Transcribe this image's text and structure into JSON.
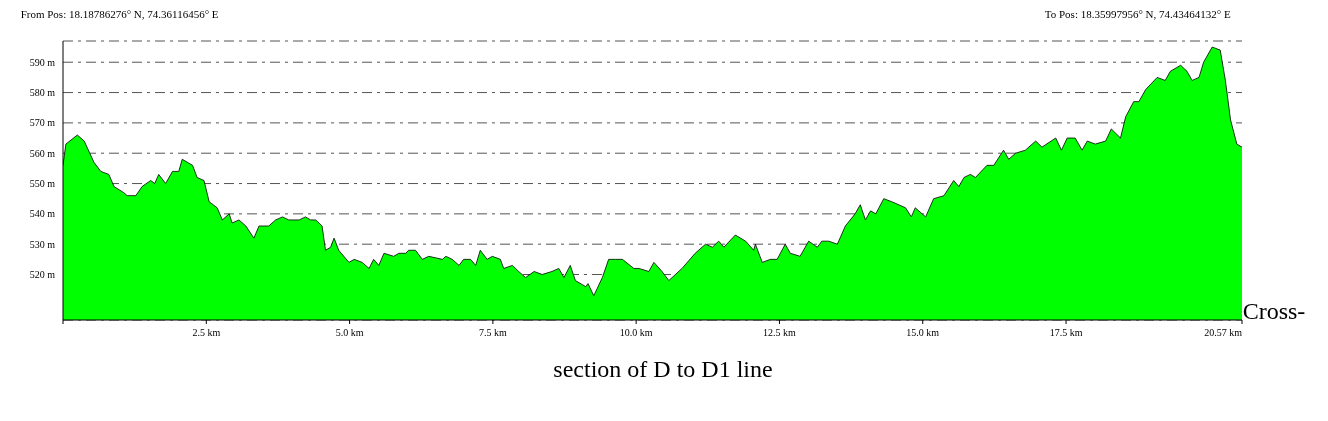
{
  "chart_data": {
    "type": "area",
    "annotations": [
      "From Pos: 18.18786276° N, 74.36116456° E",
      "To Pos: 18.35997956° N, 74.43464132° E",
      "Cross-section of D to D1 line"
    ],
    "x": [
      0,
      0.05,
      0.25,
      0.37,
      0.54,
      0.66,
      0.8,
      0.89,
      1.06,
      1.12,
      1.27,
      1.38,
      1.53,
      1.6,
      1.67,
      1.79,
      1.91,
      2.02,
      2.08,
      2.26,
      2.34,
      2.46,
      2.55,
      2.69,
      2.78,
      2.9,
      2.95,
      3.07,
      3.19,
      3.33,
      3.42,
      3.59,
      3.71,
      3.83,
      3.94,
      4.12,
      4.23,
      4.32,
      4.41,
      4.52,
      4.58,
      4.67,
      4.73,
      4.81,
      4.99,
      5.08,
      5.22,
      5.34,
      5.42,
      5.51,
      5.6,
      5.77,
      5.86,
      5.98,
      6.03,
      6.15,
      6.27,
      6.38,
      6.62,
      6.68,
      6.79,
      6.91,
      6.99,
      7.11,
      7.2,
      7.28,
      7.4,
      7.49,
      7.63,
      7.69,
      7.84,
      7.95,
      8.07,
      8.22,
      8.36,
      8.53,
      8.65,
      8.74,
      8.85,
      8.94,
      9.12,
      9.16,
      9.26,
      9.41,
      9.52,
      9.64,
      9.76,
      9.96,
      10.05,
      10.22,
      10.31,
      10.45,
      10.57,
      10.8,
      11.03,
      11.21,
      11.33,
      11.44,
      11.53,
      11.73,
      11.91,
      12.05,
      12.08,
      12.2,
      12.34,
      12.46,
      12.6,
      12.69,
      12.86,
      13.01,
      13.16,
      13.24,
      13.36,
      13.51,
      13.65,
      13.82,
      13.91,
      14.0,
      14.09,
      14.18,
      14.32,
      14.46,
      14.7,
      14.8,
      14.87,
      15.05,
      15.19,
      15.37,
      15.54,
      15.63,
      15.72,
      15.83,
      15.92,
      16.12,
      16.24,
      16.41,
      16.5,
      16.62,
      16.79,
      16.97,
      17.08,
      17.32,
      17.42,
      17.52,
      17.66,
      17.78,
      17.87,
      18.01,
      18.19,
      18.29,
      18.45,
      18.54,
      18.68,
      18.77,
      18.89,
      19.09,
      19.23,
      19.32,
      19.5,
      19.61,
      19.7,
      19.82,
      19.9,
      20.05,
      20.19,
      20.28,
      20.37,
      20.48,
      20.57
    ],
    "series": [
      {
        "color": "#00ff00",
        "values": [
          556,
          563,
          566,
          564,
          557,
          554,
          553,
          549,
          547,
          546,
          546,
          549,
          551,
          550,
          553,
          550,
          554,
          554,
          558,
          556,
          552,
          551,
          544,
          542,
          538,
          540,
          537,
          538,
          536,
          532,
          536,
          536,
          538,
          539,
          538,
          538,
          539,
          538,
          538,
          536,
          528,
          529,
          532,
          528,
          524,
          525,
          524,
          522,
          525,
          523,
          527,
          526,
          527,
          527,
          528,
          528,
          525,
          526,
          525,
          526,
          525,
          523,
          525,
          525,
          523,
          528,
          525,
          526,
          525,
          522,
          523,
          521,
          519,
          521,
          520,
          521,
          522,
          519,
          523,
          518,
          516,
          517,
          513,
          519,
          525,
          525,
          525,
          522,
          522,
          521,
          524,
          521,
          518,
          522,
          527,
          530,
          529,
          531,
          529,
          533,
          531,
          528,
          530,
          524,
          525,
          525,
          530,
          527,
          526,
          531,
          529,
          531,
          531,
          530,
          536,
          540,
          543,
          538,
          541,
          540,
          545,
          544,
          542,
          539,
          542,
          539,
          545,
          546,
          551,
          549,
          552,
          553,
          552,
          556,
          556,
          561,
          558,
          560,
          561,
          564,
          562,
          565,
          561,
          565,
          565,
          561,
          564,
          563,
          564,
          568,
          565,
          572,
          577,
          577,
          581,
          585,
          584,
          587,
          589,
          587,
          584,
          585,
          590,
          595,
          594,
          584,
          571,
          563,
          562
        ]
      }
    ],
    "xlim": [
      0,
      20.57
    ],
    "xticks": [
      {
        "value": 0,
        "label": null
      },
      {
        "value": 2.5,
        "label": "2.5 km"
      },
      {
        "value": 5,
        "label": "5.0 km"
      },
      {
        "value": 7.5,
        "label": "7.5 km"
      },
      {
        "value": 10,
        "label": "10.0 km"
      },
      {
        "value": 12.5,
        "label": "12.5 km"
      },
      {
        "value": 15,
        "label": "15.0 km"
      },
      {
        "value": 17.5,
        "label": "17.5 km"
      },
      {
        "value": 20.57,
        "label": "20.57 km"
      }
    ],
    "ylim": [
      505,
      597
    ],
    "yticks": [
      {
        "value": 520,
        "label": "520 m"
      },
      {
        "value": 530,
        "label": "530 m"
      },
      {
        "value": 540,
        "label": "540 m"
      },
      {
        "value": 550,
        "label": "550 m"
      },
      {
        "value": 560,
        "label": "560 m"
      },
      {
        "value": 570,
        "label": "570 m"
      },
      {
        "value": 580,
        "label": "580 m"
      },
      {
        "value": 590,
        "label": "590 m"
      }
    ],
    "grid": "y"
  }
}
